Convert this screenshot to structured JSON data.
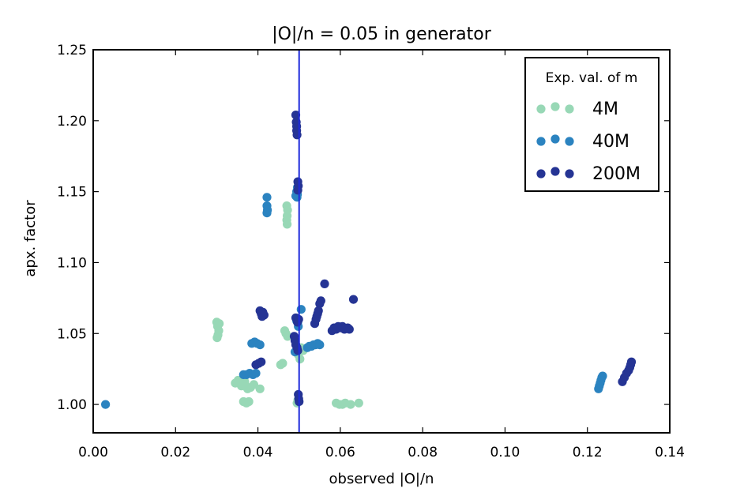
{
  "chart_data": {
    "type": "scatter",
    "title": "|O|/n = 0.05 in generator",
    "xlabel": "observed |O|/n",
    "ylabel": "apx. factor",
    "xlim": [
      0.0,
      0.14
    ],
    "ylim": [
      0.98,
      1.25
    ],
    "xticks": [
      "0.00",
      "0.02",
      "0.04",
      "0.06",
      "0.08",
      "0.10",
      "0.12",
      "0.14"
    ],
    "xtick_values": [
      0.0,
      0.02,
      0.04,
      0.06,
      0.08,
      0.1,
      0.12,
      0.14
    ],
    "yticks": [
      "1.00",
      "1.05",
      "1.10",
      "1.15",
      "1.20",
      "1.25"
    ],
    "ytick_values": [
      1.0,
      1.05,
      1.1,
      1.15,
      1.2,
      1.25
    ],
    "reference_line": {
      "x": 0.05,
      "color": "#1f2bdb"
    },
    "legend": {
      "title": "Exp. val. of m",
      "placement": "top-right"
    },
    "series": [
      {
        "name": "4M",
        "color": "#98d8b6",
        "points": [
          [
            0.03,
            1.058
          ],
          [
            0.0302,
            1.055
          ],
          [
            0.0305,
            1.052
          ],
          [
            0.0303,
            1.049
          ],
          [
            0.0301,
            1.047
          ],
          [
            0.0306,
            1.057
          ],
          [
            0.0345,
            1.015
          ],
          [
            0.0352,
            1.017
          ],
          [
            0.036,
            1.013
          ],
          [
            0.0368,
            1.016
          ],
          [
            0.0375,
            1.011
          ],
          [
            0.0382,
            1.012
          ],
          [
            0.039,
            1.014
          ],
          [
            0.0405,
            1.011
          ],
          [
            0.0365,
            1.002
          ],
          [
            0.0372,
            1.001
          ],
          [
            0.0378,
            1.002
          ],
          [
            0.0455,
            1.028
          ],
          [
            0.046,
            1.029
          ],
          [
            0.0465,
            1.052
          ],
          [
            0.0468,
            1.05
          ],
          [
            0.0472,
            1.048
          ],
          [
            0.047,
            1.14
          ],
          [
            0.0472,
            1.137
          ],
          [
            0.0471,
            1.133
          ],
          [
            0.047,
            1.13
          ],
          [
            0.0471,
            1.127
          ],
          [
            0.0495,
            1.001
          ],
          [
            0.0497,
            1.003
          ],
          [
            0.0498,
            1.035
          ],
          [
            0.0502,
            1.032
          ],
          [
            0.0505,
            1.04
          ],
          [
            0.051,
            1.038
          ],
          [
            0.052,
            1.04
          ],
          [
            0.059,
            1.001
          ],
          [
            0.0598,
            1.0
          ],
          [
            0.0605,
            1.0
          ],
          [
            0.0612,
            1.001
          ],
          [
            0.0625,
            1.0
          ],
          [
            0.0645,
            1.001
          ]
        ]
      },
      {
        "name": "40M",
        "color": "#2b83c0",
        "points": [
          [
            0.003,
            1.0
          ],
          [
            0.0365,
            1.021
          ],
          [
            0.0372,
            1.021
          ],
          [
            0.038,
            1.022
          ],
          [
            0.0388,
            1.021
          ],
          [
            0.0395,
            1.022
          ],
          [
            0.0385,
            1.043
          ],
          [
            0.0392,
            1.044
          ],
          [
            0.0398,
            1.043
          ],
          [
            0.0405,
            1.042
          ],
          [
            0.0422,
            1.146
          ],
          [
            0.0422,
            1.14
          ],
          [
            0.0423,
            1.137
          ],
          [
            0.0422,
            1.135
          ],
          [
            0.049,
            1.037
          ],
          [
            0.0495,
            1.039
          ],
          [
            0.0498,
            1.055
          ],
          [
            0.0497,
            1.058
          ],
          [
            0.0494,
            1.059
          ],
          [
            0.0492,
            1.147
          ],
          [
            0.0494,
            1.15
          ],
          [
            0.0496,
            1.153
          ],
          [
            0.0496,
            1.148
          ],
          [
            0.0495,
            1.146
          ],
          [
            0.0505,
            1.067
          ],
          [
            0.052,
            1.04
          ],
          [
            0.0525,
            1.041
          ],
          [
            0.053,
            1.041
          ],
          [
            0.0535,
            1.042
          ],
          [
            0.054,
            1.042
          ],
          [
            0.0545,
            1.043
          ],
          [
            0.055,
            1.042
          ],
          [
            0.1227,
            1.011
          ],
          [
            0.1229,
            1.013
          ],
          [
            0.1231,
            1.015
          ],
          [
            0.1233,
            1.017
          ],
          [
            0.1235,
            1.019
          ],
          [
            0.1237,
            1.02
          ]
        ]
      },
      {
        "name": "200M",
        "color": "#253494",
        "points": [
          [
            0.0395,
            1.028
          ],
          [
            0.0402,
            1.029
          ],
          [
            0.0408,
            1.03
          ],
          [
            0.0405,
            1.066
          ],
          [
            0.0408,
            1.064
          ],
          [
            0.041,
            1.062
          ],
          [
            0.0412,
            1.065
          ],
          [
            0.0415,
            1.063
          ],
          [
            0.0488,
            1.048
          ],
          [
            0.049,
            1.045
          ],
          [
            0.0492,
            1.042
          ],
          [
            0.0495,
            1.04
          ],
          [
            0.0497,
            1.038
          ],
          [
            0.0492,
            1.061
          ],
          [
            0.0496,
            1.058
          ],
          [
            0.0499,
            1.06
          ],
          [
            0.0492,
            1.204
          ],
          [
            0.0493,
            1.199
          ],
          [
            0.0494,
            1.196
          ],
          [
            0.0494,
            1.193
          ],
          [
            0.0495,
            1.19
          ],
          [
            0.0497,
            1.157
          ],
          [
            0.0498,
            1.154
          ],
          [
            0.0497,
            1.151
          ],
          [
            0.0498,
            1.007
          ],
          [
            0.0499,
            1.004
          ],
          [
            0.05,
            1.002
          ],
          [
            0.0538,
            1.057
          ],
          [
            0.0541,
            1.06
          ],
          [
            0.0543,
            1.062
          ],
          [
            0.0545,
            1.064
          ],
          [
            0.0547,
            1.066
          ],
          [
            0.055,
            1.071
          ],
          [
            0.0553,
            1.073
          ],
          [
            0.0562,
            1.085
          ],
          [
            0.058,
            1.052
          ],
          [
            0.0585,
            1.054
          ],
          [
            0.059,
            1.053
          ],
          [
            0.0595,
            1.055
          ],
          [
            0.06,
            1.054
          ],
          [
            0.0605,
            1.055
          ],
          [
            0.061,
            1.053
          ],
          [
            0.0618,
            1.054
          ],
          [
            0.0622,
            1.053
          ],
          [
            0.0632,
            1.074
          ],
          [
            0.1285,
            1.016
          ],
          [
            0.129,
            1.019
          ],
          [
            0.1295,
            1.022
          ],
          [
            0.13,
            1.024
          ],
          [
            0.1303,
            1.026
          ],
          [
            0.1305,
            1.028
          ],
          [
            0.1307,
            1.03
          ]
        ]
      }
    ]
  }
}
